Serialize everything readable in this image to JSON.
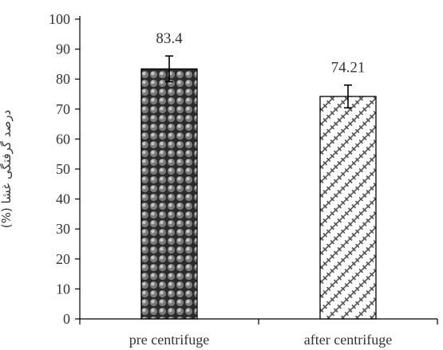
{
  "chart_data": {
    "type": "bar",
    "categories": [
      "pre centrifuge",
      "after centrifuge"
    ],
    "values": [
      83.4,
      74.21
    ],
    "error": [
      4.3,
      3.8
    ],
    "data_labels": [
      "83.4",
      "74.21"
    ],
    "ylabel": "درصد گرفتگی غشا (%)",
    "xlabel": "",
    "ylim": [
      0,
      100
    ],
    "yticks": [
      0,
      10,
      20,
      30,
      40,
      50,
      60,
      70,
      80,
      90,
      100
    ],
    "grid": false,
    "legend": "none",
    "patterns": [
      "dots",
      "crosshatch-diagonal"
    ],
    "colors": {
      "axis": "#000000",
      "bar_outline": "#000000",
      "dots": "#555555",
      "hatch": "#444444",
      "text": "#333333"
    }
  }
}
